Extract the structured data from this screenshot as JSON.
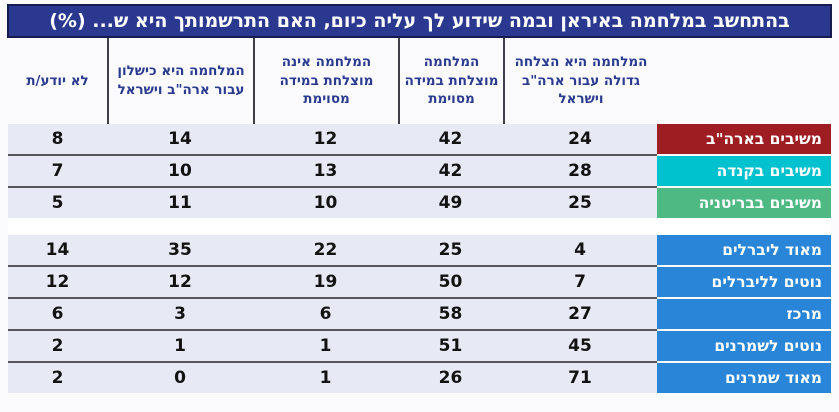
{
  "title": "בהתחשב במלחמה באיראן ובמה שידוע לך עליה כיום, האם התרשמותך היא ש... (%)",
  "colors": {
    "title_bar": "#2A3890",
    "title_bar_border": "#161C4D",
    "header_text": "#2A3A8F",
    "cell_background": "#E7E9F5",
    "separator_line": "#56565C",
    "row_us": "#9E1D22",
    "row_canada": "#00C1CE",
    "row_britain": "#4FB984",
    "row_political": "#2885D8"
  },
  "chart_data": {
    "type": "table",
    "unit": "%",
    "title": "בהתחשב במלחמה באיראן ובמה שידוע לך עליה כיום, האם התרשמותך היא ש... (%)",
    "columns": [
      "המלחמה היא הצלחה גדולה עבור ארה\"ב וישראל",
      "המלחמה מוצלחת במידה מסוימת",
      "המלחמה אינה מוצלחת במידה מסוימת",
      "המלחמה היא כישלון עבור ארה\"ב וישראל",
      "לא יודע/ת"
    ],
    "groups": [
      {
        "rows": [
          {
            "label": "משיבים בארה\"ב",
            "color": "#9E1D22",
            "values": [
              24,
              42,
              12,
              14,
              8
            ]
          },
          {
            "label": "משיבים בקנדה",
            "color": "#00C1CE",
            "values": [
              28,
              42,
              13,
              10,
              7
            ]
          },
          {
            "label": "משיבים בבריטניה",
            "color": "#4FB984",
            "values": [
              25,
              49,
              10,
              11,
              5
            ]
          }
        ]
      },
      {
        "rows": [
          {
            "label": "מאוד ליברלים",
            "color": "#2885D8",
            "values": [
              4,
              25,
              22,
              35,
              14
            ]
          },
          {
            "label": "נוטים לליברלים",
            "color": "#2885D8",
            "values": [
              7,
              50,
              19,
              12,
              12
            ]
          },
          {
            "label": "מרכז",
            "color": "#2885D8",
            "values": [
              27,
              58,
              6,
              3,
              6
            ]
          },
          {
            "label": "נוטים לשמרנים",
            "color": "#2885D8",
            "values": [
              45,
              51,
              1,
              1,
              2
            ]
          },
          {
            "label": "מאוד שמרנים",
            "color": "#2885D8",
            "values": [
              71,
              26,
              1,
              0,
              2
            ]
          }
        ]
      }
    ]
  }
}
